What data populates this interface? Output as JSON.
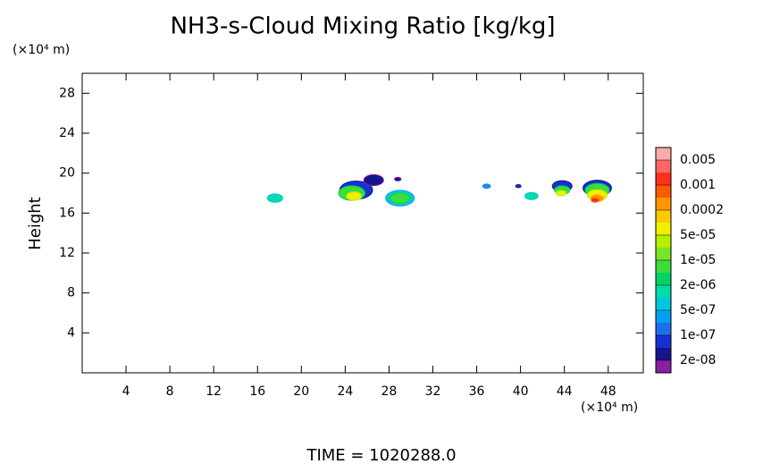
{
  "chart_data": {
    "type": "contour",
    "title": "NH3-s-Cloud Mixing Ratio [kg/kg]",
    "y_label": "Height",
    "y_unit": "(×10⁴ m)",
    "x_unit": "(×10⁴ m)",
    "footer": "TIME = 1020288.0",
    "xlim": [
      0,
      51.2
    ],
    "ylim": [
      0,
      30
    ],
    "xticks": [
      4,
      8,
      12,
      16,
      20,
      24,
      28,
      32,
      36,
      40,
      44,
      48
    ],
    "yticks": [
      4,
      8,
      12,
      16,
      20,
      24,
      28
    ],
    "colorbar": {
      "colors": [
        "#ffaaaa",
        "#ff6666",
        "#ff3020",
        "#ff5a00",
        "#ff9600",
        "#ffc800",
        "#f0f000",
        "#b4f000",
        "#78e628",
        "#3cdc3c",
        "#00d264",
        "#00dcaa",
        "#00c8dc",
        "#00a0f0",
        "#1e6ef0",
        "#1432d2",
        "#14148c",
        "#8c1ea0"
      ],
      "ticks": [
        0.005,
        0.001,
        0.0002,
        {
          "value": 5e-05,
          "label": "5e-05"
        },
        {
          "value": 1e-05,
          "label": "1e-05"
        },
        {
          "value": 2e-06,
          "label": "2e-06"
        },
        {
          "value": 5e-07,
          "label": "5e-07"
        },
        {
          "value": 1e-07,
          "label": "1e-07"
        },
        {
          "value": 2e-08,
          "label": "2e-08"
        }
      ]
    },
    "cells": {
      "x": [
        17.6,
        25.0,
        24.6,
        24.8,
        26.6,
        28.8,
        29.0,
        29.0,
        36.9,
        39.8,
        41.0,
        43.8,
        43.8,
        43.7,
        47.0,
        47.0,
        47.0,
        47.0,
        46.8
      ],
      "y": [
        17.5,
        18.3,
        18.0,
        17.7,
        19.3,
        19.4,
        17.5,
        17.5,
        18.7,
        18.7,
        17.7,
        18.7,
        18.3,
        18.0,
        18.5,
        18.3,
        17.8,
        17.5,
        17.3
      ],
      "size": [
        0.7,
        1.5,
        1.2,
        0.7,
        0.9,
        0.3,
        1.3,
        0.9,
        0.35,
        0.25,
        0.6,
        0.9,
        0.7,
        0.45,
        1.3,
        1.1,
        0.9,
        0.6,
        0.35
      ],
      "level": [
        11,
        15,
        9,
        6,
        16,
        16,
        12,
        9,
        13,
        15,
        11,
        15,
        9,
        6,
        15,
        9,
        6,
        4,
        2
      ]
    }
  }
}
